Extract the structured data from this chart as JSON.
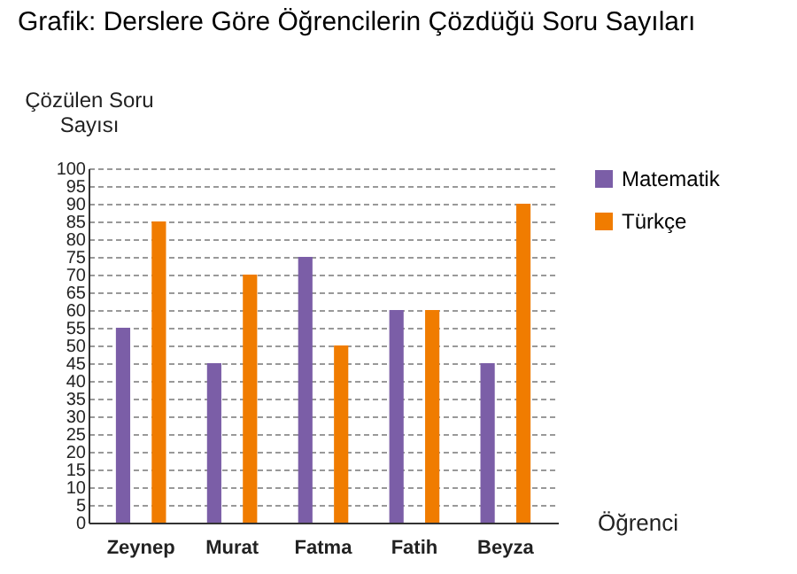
{
  "chart_data": {
    "type": "bar",
    "title": "Grafik: Derslere Göre Öğrencilerin Çözdüğü Soru Sayıları",
    "xlabel": "Öğrenci",
    "ylabel": "Çözülen Soru Sayısı",
    "categories": [
      "Zeynep",
      "Murat",
      "Fatma",
      "Fatih",
      "Beyza"
    ],
    "series": [
      {
        "name": "Matematik",
        "color": "#7b5ea7",
        "values": [
          55,
          45,
          75,
          60,
          45
        ]
      },
      {
        "name": "Türkçe",
        "color": "#f07c00",
        "values": [
          85,
          70,
          50,
          60,
          90
        ]
      }
    ],
    "ylim": [
      0,
      100
    ],
    "yticks": [
      0,
      5,
      10,
      15,
      20,
      25,
      30,
      35,
      40,
      45,
      50,
      55,
      60,
      65,
      70,
      75,
      80,
      85,
      90,
      95,
      100
    ],
    "grid": "y",
    "legend": "right"
  }
}
